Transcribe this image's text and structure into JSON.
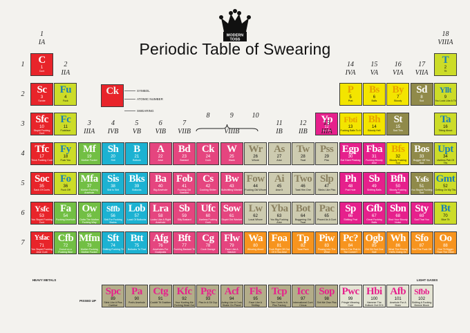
{
  "title": "Periodic Table of Swearing",
  "logo": {
    "line1": "MODERN",
    "line2": "TOSS"
  },
  "colors": {
    "red": "#e8242a",
    "orange": "#f7941e",
    "green": "#72bf44",
    "cyan": "#1cb2d2",
    "magenta": "#e5457f",
    "gray": "#cdcbb0",
    "yellow": "#f3e500",
    "tan": "#b3ad89",
    "olive": "#908a4a",
    "pink": "#e6208c",
    "lime": "#ccdc28",
    "lgray": "#e4e4d4"
  },
  "groups": [
    {
      "n": "1",
      "r": "IA",
      "col": 1
    },
    {
      "n": "2",
      "r": "IIA",
      "col": 2
    },
    {
      "n": "3",
      "r": "IIIA",
      "col": 3
    },
    {
      "n": "4",
      "r": "IVB",
      "col": 4
    },
    {
      "n": "5",
      "r": "VB",
      "col": 5
    },
    {
      "n": "6",
      "r": "VIB",
      "col": 6
    },
    {
      "n": "7",
      "r": "VIIB",
      "col": 7
    },
    {
      "n": "8",
      "r": "",
      "col": 8
    },
    {
      "n": "9",
      "r": "VIIIB",
      "col": 9
    },
    {
      "n": "10",
      "r": "",
      "col": 10
    },
    {
      "n": "11",
      "r": "IB",
      "col": 11
    },
    {
      "n": "12",
      "r": "IIB",
      "col": 12
    },
    {
      "n": "13",
      "r": "IIIA",
      "col": 13
    },
    {
      "n": "14",
      "r": "IVA",
      "col": 14
    },
    {
      "n": "15",
      "r": "VA",
      "col": 15
    },
    {
      "n": "16",
      "r": "VIA",
      "col": 16
    },
    {
      "n": "17",
      "r": "VIIA",
      "col": 17
    },
    {
      "n": "18",
      "r": "VIIIA",
      "col": 18
    }
  ],
  "periods": [
    "1",
    "2",
    "3",
    "4",
    "5",
    "6",
    "7"
  ],
  "legend": {
    "sym": "Ck",
    "labels": [
      "SYMBOL",
      "ATOMIC NUMBER",
      "SWEARING"
    ]
  },
  "labels": {
    "heavy": "HEAVY METALS",
    "light": "LIGHT GASES",
    "pissed": "PISSED UP"
  },
  "elements": [
    {
      "s": "C",
      "z": "1",
      "n": "Cunt",
      "c": "red",
      "col": 1,
      "row": 1
    },
    {
      "s": "T",
      "z": "2",
      "n": "Tit",
      "c": "lime",
      "col": 18,
      "row": 1
    },
    {
      "s": "Sc",
      "z": "3",
      "n": "Scrote",
      "c": "red",
      "col": 1,
      "row": 2
    },
    {
      "s": "Fu",
      "z": "4",
      "n": "Fuck",
      "c": "lime",
      "col": 2,
      "row": 2
    },
    {
      "s": "P",
      "z": "5",
      "n": "Prat",
      "c": "yellow",
      "col": 14,
      "row": 2
    },
    {
      "s": "Bs",
      "z": "6",
      "n": "Balls",
      "c": "yellow",
      "col": 15,
      "row": 2
    },
    {
      "s": "By",
      "z": "7",
      "n": "Bloody",
      "c": "yellow",
      "col": 16,
      "row": 2
    },
    {
      "s": "Sd",
      "z": "8",
      "n": "Sod",
      "c": "olive",
      "col": 17,
      "row": 2
    },
    {
      "s": "Yllt",
      "z": "9",
      "n": "You Look Like A Tit",
      "c": "lime",
      "col": 18,
      "row": 2
    },
    {
      "s": "Sfc",
      "z": "10",
      "n": "Stupid Fucking Cunt",
      "c": "red",
      "col": 1,
      "row": 3
    },
    {
      "s": "Fc",
      "z": "11",
      "n": "Fuckface",
      "c": "lime",
      "col": 2,
      "row": 3
    },
    {
      "s": "Yp",
      "z": "12",
      "n": "You Prat",
      "c": "pink",
      "col": 13,
      "row": 3
    },
    {
      "s": "Fbti",
      "z": "13",
      "n": "Fucking Balls To It",
      "c": "yellow",
      "col": 14,
      "row": 3
    },
    {
      "s": "Bh",
      "z": "14",
      "n": "Bloody Hell",
      "c": "yellow",
      "col": 15,
      "row": 3
    },
    {
      "s": "St",
      "z": "15",
      "n": "Sod This",
      "c": "olive",
      "col": 16,
      "row": 3
    },
    {
      "s": "Ta",
      "z": "16",
      "n": "Titting About",
      "c": "lime",
      "col": 18,
      "row": 3
    },
    {
      "s": "Tfc",
      "z": "17",
      "n": "Thick Fucking Cunt",
      "c": "red",
      "col": 1,
      "row": 4
    },
    {
      "s": "Fy",
      "z": "18",
      "n": "Fuck You",
      "c": "lime",
      "col": 2,
      "row": 4
    },
    {
      "s": "Mf",
      "z": "19",
      "n": "Mother Fucker",
      "c": "green",
      "col": 3,
      "row": 4
    },
    {
      "s": "Sh",
      "z": "20",
      "n": "Shit",
      "c": "cyan",
      "col": 4,
      "row": 4
    },
    {
      "s": "B",
      "z": "21",
      "n": "Bollock",
      "c": "cyan",
      "col": 5,
      "row": 4
    },
    {
      "s": "A",
      "z": "22",
      "n": "Arse",
      "c": "magenta",
      "col": 6,
      "row": 4
    },
    {
      "s": "Bd",
      "z": "23",
      "n": "Bastard",
      "c": "magenta",
      "col": 7,
      "row": 4
    },
    {
      "s": "Ck",
      "z": "24",
      "n": "Cock",
      "c": "magenta",
      "col": 8,
      "row": 4
    },
    {
      "s": "W",
      "z": "25",
      "n": "Wank",
      "c": "magenta",
      "col": 9,
      "row": 4
    },
    {
      "s": "Wr",
      "z": "26",
      "n": "Whore",
      "c": "gray",
      "col": 10,
      "row": 4
    },
    {
      "s": "As",
      "z": "27",
      "n": "Arse",
      "c": "gray",
      "col": 11,
      "row": 4
    },
    {
      "s": "Tw",
      "z": "28",
      "n": "Twat",
      "c": "gray",
      "col": 12,
      "row": 4
    },
    {
      "s": "Pss",
      "z": "29",
      "n": "Piss",
      "c": "gray",
      "col": 13,
      "row": 4
    },
    {
      "s": "Egp",
      "z": "30",
      "n": "Eat Giant Pissbag",
      "c": "pink",
      "col": 14,
      "row": 4
    },
    {
      "s": "Fba",
      "z": "31",
      "n": "Fucking Bloody Arse",
      "c": "pink",
      "col": 15,
      "row": 4
    },
    {
      "s": "Bfs",
      "z": "32",
      "n": "Bloody Fucking Sod",
      "c": "yellow",
      "col": 16,
      "row": 4
    },
    {
      "s": "Bos",
      "z": "33",
      "n": "Bugger Off You Sod",
      "c": "olive",
      "col": 17,
      "row": 4
    },
    {
      "s": "Upt",
      "z": "34",
      "n": "Useless Pair Of Tits",
      "c": "lime",
      "col": 18,
      "row": 4
    },
    {
      "s": "Soc",
      "z": "35",
      "n": "Sack Of Cunts",
      "c": "red",
      "col": 1,
      "row": 5
    },
    {
      "s": "Fo",
      "z": "36",
      "n": "Fuck Off",
      "c": "lime",
      "col": 2,
      "row": 5
    },
    {
      "s": "Mfa",
      "z": "37",
      "n": "Mother Fucking Arsehole",
      "c": "green",
      "col": 3,
      "row": 5
    },
    {
      "s": "Sis",
      "z": "38",
      "n": "Shit Is Shit",
      "c": "cyan",
      "col": 4,
      "row": 5
    },
    {
      "s": "Bks",
      "z": "39",
      "n": "Bollocks",
      "c": "cyan",
      "col": 5,
      "row": 5
    },
    {
      "s": "Ba",
      "z": "40",
      "n": "Big Arsehole",
      "c": "magenta",
      "col": 6,
      "row": 5
    },
    {
      "s": "Fob",
      "z": "41",
      "n": "Fucking Old Bastard",
      "c": "magenta",
      "col": 7,
      "row": 5
    },
    {
      "s": "Cs",
      "z": "42",
      "n": "Cocking Shitter",
      "c": "magenta",
      "col": 8,
      "row": 5
    },
    {
      "s": "Bw",
      "z": "43",
      "n": "Bullshitting Wanker",
      "c": "magenta",
      "col": 9,
      "row": 5
    },
    {
      "s": "Fow",
      "z": "44",
      "n": "Fucking Old Whore",
      "c": "gray",
      "col": 10,
      "row": 5
    },
    {
      "s": "Ai",
      "z": "45",
      "n": "Arse It",
      "c": "gray",
      "col": 11,
      "row": 5
    },
    {
      "s": "Two",
      "z": "46",
      "n": "Twat Him One",
      "c": "gray",
      "col": 12,
      "row": 5
    },
    {
      "s": "Slp",
      "z": "47",
      "n": "Stinks Like Piss",
      "c": "gray",
      "col": 13,
      "row": 5
    },
    {
      "s": "Ph",
      "z": "48",
      "n": "Prat Hole",
      "c": "pink",
      "col": 14,
      "row": 5
    },
    {
      "s": "Sb",
      "z": "49",
      "n": "Shitting Balls",
      "c": "pink",
      "col": 15,
      "row": 5
    },
    {
      "s": "Bfh",
      "z": "50",
      "n": "Bloody Fucking Hell",
      "c": "pink",
      "col": 16,
      "row": 5
    },
    {
      "s": "Ysfs",
      "z": "51",
      "n": "You Stupid Fucking Sod",
      "c": "olive",
      "col": 17,
      "row": 5
    },
    {
      "s": "Gmt",
      "z": "52",
      "n": "Getting On My Tits",
      "c": "lime",
      "col": 18,
      "row": 5
    },
    {
      "s": "Ysfc",
      "z": "53",
      "n": "You Stupid Fucking Cunt",
      "c": "red",
      "col": 1,
      "row": 6
    },
    {
      "s": "Fa",
      "z": "54",
      "n": "Fucking Arsehole",
      "c": "green",
      "col": 2,
      "row": 6
    },
    {
      "s": "Ow",
      "z": "55",
      "n": "Outta The Mother Fucking Way",
      "c": "green",
      "col": 3,
      "row": 6
    },
    {
      "s": "Sffb",
      "z": "56",
      "n": "Shit For Fucking Brains",
      "c": "cyan",
      "col": 4,
      "row": 6
    },
    {
      "s": "Lob",
      "z": "57",
      "n": "Load Of Bollocks",
      "c": "cyan",
      "col": 5,
      "row": 6
    },
    {
      "s": "Lra",
      "z": "58",
      "n": "Looks Like A Right Arsehole",
      "c": "magenta",
      "col": 6,
      "row": 6
    },
    {
      "s": "Sb",
      "z": "59",
      "n": "Silly Bastard",
      "c": "magenta",
      "col": 7,
      "row": 6
    },
    {
      "s": "Ufc",
      "z": "60",
      "n": "Useless Fucking Cock",
      "c": "magenta",
      "col": 8,
      "row": 6
    },
    {
      "s": "Sow",
      "z": "61",
      "n": "Stupid Old Wanker",
      "c": "magenta",
      "col": 9,
      "row": 6
    },
    {
      "s": "Lw",
      "z": "62",
      "n": "Local Whore",
      "c": "gray",
      "col": 10,
      "row": 6
    },
    {
      "s": "Yba",
      "z": "63",
      "n": "You Big Fucking Arse",
      "c": "gray",
      "col": 11,
      "row": 6
    },
    {
      "s": "Bot",
      "z": "64",
      "n": "Buggering Old Twat",
      "c": "gray",
      "col": 12,
      "row": 6
    },
    {
      "s": "Pac",
      "z": "65",
      "n": "Pissed As A Cunt",
      "c": "gray",
      "col": 13,
      "row": 6
    },
    {
      "s": "Sp",
      "z": "66",
      "n": "Shitting Prat",
      "c": "pink",
      "col": 14,
      "row": 6
    },
    {
      "s": "Gfb",
      "z": "67",
      "n": "Great Fucking Balls",
      "c": "pink",
      "col": 15,
      "row": 6
    },
    {
      "s": "Sbn",
      "z": "68",
      "n": "Shut Your Bloody Noise",
      "c": "pink",
      "col": 16,
      "row": 6
    },
    {
      "s": "Sty",
      "z": "69",
      "n": "Sod That You",
      "c": "pink",
      "col": 17,
      "row": 6
    },
    {
      "s": "Bt",
      "z": "70",
      "n": "Blue Tit",
      "c": "lime",
      "col": 18,
      "row": 6
    },
    {
      "s": "Ysfac",
      "z": "71",
      "n": "You Stupid Fucking Arse Cunt",
      "c": "red",
      "col": 1,
      "row": 7
    },
    {
      "s": "Cfb",
      "z": "72",
      "n": "Donut on a Fucking Bike",
      "c": "green",
      "col": 2,
      "row": 7
    },
    {
      "s": "Mfm",
      "z": "73",
      "n": "Mother Fucking Mother Fucker",
      "c": "green",
      "col": 3,
      "row": 7
    },
    {
      "s": "Sft",
      "z": "74",
      "n": "Shitting Fucking Tit",
      "c": "cyan",
      "col": 4,
      "row": 7
    },
    {
      "s": "Btt",
      "z": "75",
      "n": "Bollocks To That",
      "c": "cyan",
      "col": 5,
      "row": 7
    },
    {
      "s": "Afg",
      "z": "76",
      "n": "Arseholes For Goalposts",
      "c": "magenta",
      "col": 6,
      "row": 7
    },
    {
      "s": "Bft",
      "z": "77",
      "n": "Fucking Bastard Tit",
      "c": "magenta",
      "col": 7,
      "row": 7
    },
    {
      "s": "Cg",
      "z": "78",
      "n": "Cock Garage",
      "c": "magenta",
      "col": 8,
      "row": 7
    },
    {
      "s": "Flw",
      "z": "79",
      "n": "Face Like A Wanker",
      "c": "magenta",
      "col": 9,
      "row": 7
    },
    {
      "s": "Wa",
      "z": "80",
      "n": "Whoring About",
      "c": "orange",
      "col": 10,
      "row": 7
    },
    {
      "s": "Foa",
      "z": "81",
      "n": "Fuck Right Off Out Of It You Arse",
      "c": "orange",
      "col": 11,
      "row": 7
    },
    {
      "s": "Tp",
      "z": "82",
      "n": "Twat Pack",
      "c": "orange",
      "col": 12,
      "row": 7
    },
    {
      "s": "Piw",
      "z": "83",
      "n": "Pissing Into The Wind",
      "c": "orange",
      "col": 13,
      "row": 7
    },
    {
      "s": "Pc?",
      "z": "84",
      "n": "Who's The Prat In The Corner?",
      "c": "orange",
      "col": 14,
      "row": 7
    },
    {
      "s": "Ogb",
      "z": "85",
      "n": "Old Git Sod One Ball",
      "c": "orange",
      "col": 15,
      "row": 7
    },
    {
      "s": "Wh",
      "z": "86",
      "n": "What The Bloody Hell's Going On Here?",
      "c": "orange",
      "col": 16,
      "row": 7
    },
    {
      "s": "Sfo",
      "z": "87",
      "n": "Sod The Fuck Off",
      "c": "orange",
      "col": 17,
      "row": 7
    },
    {
      "s": "Oo",
      "z": "88",
      "n": "One Tit Bigger Than The Other",
      "c": "orange",
      "col": 18,
      "row": 7
    },
    {
      "s": "Spc",
      "z": "89",
      "n": "Stink Like A Piss Cwelloe",
      "c": "tan",
      "col": 4,
      "row": 9
    },
    {
      "s": "Pa",
      "z": "90",
      "n": "Prat's Arsehole",
      "c": "tan",
      "col": 5,
      "row": 9
    },
    {
      "s": "Ctg",
      "z": "91",
      "n": "Cocktit Tit Grabber",
      "c": "tan",
      "col": 6,
      "row": 9
    },
    {
      "s": "Kfc",
      "z": "92",
      "n": "Your Kunting Me Fucking Head Out Cunt",
      "c": "tan",
      "col": 7,
      "row": 9
    },
    {
      "s": "Pgc",
      "z": "93",
      "n": "Piss In A Git Cup",
      "c": "tan",
      "col": 8,
      "row": 9
    },
    {
      "s": "Acf",
      "z": "94",
      "n": "Acting Like A Cock Shake On Planet Hold",
      "c": "tan",
      "col": 9,
      "row": 9
    },
    {
      "s": "Fls",
      "z": "95",
      "n": "Face Like A Shitflap",
      "c": "tan",
      "col": 10,
      "row": 9
    },
    {
      "s": "Tcp",
      "z": "96",
      "n": "Two Cunts In A Piss Factory",
      "c": "tan",
      "col": 11,
      "row": 9
    },
    {
      "s": "Icc",
      "z": "97",
      "n": "International Cunt Circus",
      "c": "tan",
      "col": 12,
      "row": 9
    },
    {
      "s": "Sop",
      "z": "98",
      "n": "Shit Me Own Piss",
      "c": "tan",
      "col": 13,
      "row": 9
    },
    {
      "s": "Pwc",
      "z": "99",
      "n": "Pringle Wearing Cunt",
      "c": "lgray",
      "col": 14,
      "row": 9
    },
    {
      "s": "Hbi",
      "z": "100",
      "n": "Hammer The Bollock Out Of It",
      "c": "lgray",
      "col": 15,
      "row": 9
    },
    {
      "s": "Afb",
      "z": "101",
      "n": "Arsehole For A Brain",
      "c": "lgray",
      "col": 16,
      "row": 9
    },
    {
      "s": "Sfbb",
      "z": "102",
      "n": "Shitting A Fucking Breeze Block",
      "c": "lgray",
      "col": 17,
      "row": 9
    }
  ]
}
